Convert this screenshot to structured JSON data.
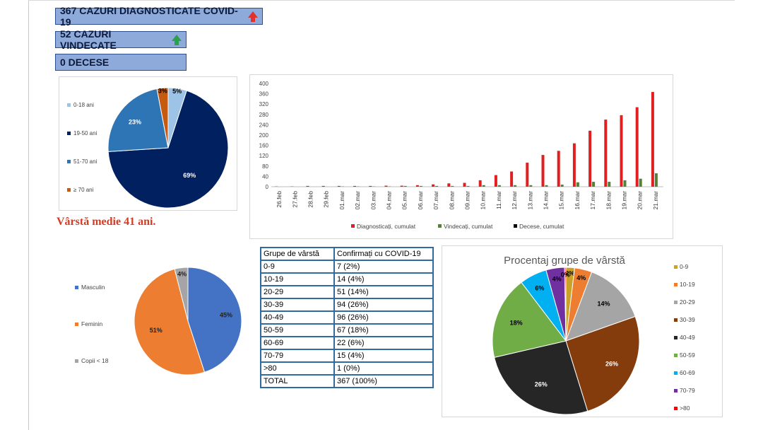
{
  "header": {
    "diagnosticate": "367 CAZURI DIAGNOSTICATE COVID-19",
    "vindecate": "52 CAZURI VINDECATE",
    "decese": "0 DECESE",
    "arrow_up_red": "#e03030",
    "arrow_up_green": "#2e9e4f"
  },
  "medie_varsta": "Vârstă medie 41 ani.",
  "chart_data": [
    {
      "type": "pie",
      "id": "age-groups-pie",
      "labels": [
        "0-18 ani",
        "19-50 ani",
        "51-70 ani",
        "≥ 70 ani"
      ],
      "values": [
        5,
        69,
        23,
        3
      ],
      "slice_labels": [
        "5%",
        "69%",
        "23%",
        "3%"
      ],
      "colors": [
        "#9dc3e6",
        "#002060",
        "#2e75b6",
        "#c55a11"
      ],
      "legend": "left"
    },
    {
      "type": "bar",
      "id": "cumulative-cases",
      "categories": [
        "26.feb",
        "27.feb",
        "28.feb",
        "29.feb",
        "01.mar",
        "02.mar",
        "03.mar",
        "04.mar",
        "05.mar",
        "06.mar",
        "07.mar",
        "08.mar",
        "09.mar",
        "10.mar",
        "11.mar",
        "12.mar",
        "13.mar",
        "14.mar",
        "15.mar",
        "16.mar",
        "17.mar",
        "18.mar",
        "19.mar",
        "20.mar",
        "21.mar"
      ],
      "series": [
        {
          "name": "Diagnosticați, cumulat",
          "color": "#e02020",
          "values": [
            1,
            1,
            3,
            3,
            3,
            3,
            3,
            4,
            4,
            6,
            9,
            13,
            15,
            25,
            45,
            59,
            93,
            123,
            139,
            168,
            217,
            260,
            277,
            308,
            367
          ]
        },
        {
          "name": "Vindecați, cumulat",
          "color": "#538135",
          "values": [
            0,
            0,
            0,
            0,
            1,
            1,
            1,
            1,
            3,
            3,
            3,
            3,
            3,
            6,
            6,
            6,
            6,
            6,
            8,
            17,
            19,
            19,
            25,
            31,
            52
          ]
        },
        {
          "name": "Decese, cumulat",
          "color": "#000000",
          "values": [
            0,
            0,
            0,
            0,
            0,
            0,
            0,
            0,
            0,
            0,
            0,
            0,
            0,
            0,
            0,
            0,
            0,
            0,
            0,
            0,
            0,
            0,
            0,
            0,
            0
          ]
        }
      ],
      "ylim": [
        0,
        400
      ],
      "yticks": [
        0,
        40,
        80,
        120,
        160,
        200,
        240,
        280,
        320,
        360,
        400
      ],
      "legend": "bottom"
    },
    {
      "type": "pie",
      "id": "gender-pie",
      "labels": [
        "Masculin",
        "Feminin",
        "Copii < 18"
      ],
      "values": [
        45,
        51,
        4
      ],
      "slice_labels": [
        "45%",
        "51%",
        "4%"
      ],
      "colors": [
        "#4472c4",
        "#ed7d31",
        "#a5a5a5"
      ],
      "legend": "left"
    },
    {
      "type": "table",
      "id": "age-table",
      "headers": [
        "Grupe de vârstă",
        "Confirmați cu COVID-19"
      ],
      "rows": [
        [
          "0-9",
          "7 (2%)"
        ],
        [
          "10-19",
          "14 (4%)"
        ],
        [
          "20-29",
          "51 (14%)"
        ],
        [
          "30-39",
          "94 (26%)"
        ],
        [
          "40-49",
          "96 (26%)"
        ],
        [
          "50-59",
          "67 (18%)"
        ],
        [
          "60-69",
          "22 (6%)"
        ],
        [
          "70-79",
          "15 (4%)"
        ],
        [
          ">80",
          "1 (0%)"
        ],
        [
          "TOTAL",
          "367 (100%)"
        ]
      ]
    },
    {
      "type": "pie",
      "id": "age-percent-pie",
      "title": "Procentaj grupe de vârstă",
      "labels": [
        "0-9",
        "10-19",
        "20-29",
        "30-39",
        "40-49",
        "50-59",
        "60-69",
        "70-79",
        ">80"
      ],
      "values": [
        7,
        14,
        51,
        94,
        96,
        67,
        22,
        15,
        1
      ],
      "slice_labels": [
        "2%",
        "4%",
        "14%",
        "26%",
        "26%",
        "18%",
        "6%",
        "4%",
        "0%"
      ],
      "colors": [
        "#c9a227",
        "#ed7d31",
        "#a5a5a5",
        "#843c0c",
        "#262626",
        "#70ad47",
        "#00b0f0",
        "#7030a0",
        "#ff0000"
      ],
      "legend": "right"
    }
  ]
}
